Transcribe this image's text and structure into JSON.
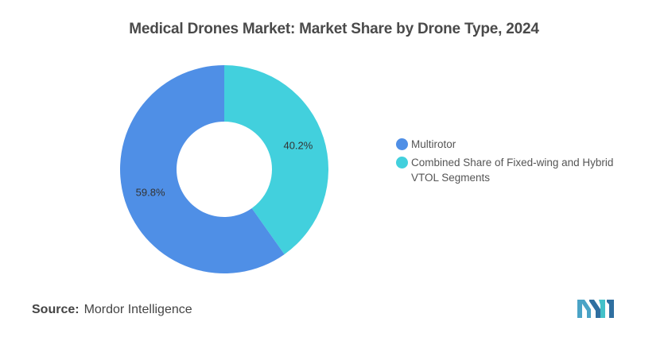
{
  "chart_data": {
    "type": "pie",
    "variant": "donut",
    "title": "Medical Drones Market: Market Share by Drone Type, 2024",
    "categories": [
      "Multirotor",
      "Combined Share of Fixed-wing and Hybrid VTOL Segments"
    ],
    "values": [
      59.8,
      40.2
    ],
    "labels": [
      "59.8%",
      "40.2%"
    ],
    "colors": [
      "#4f8fe6",
      "#42d0dd"
    ],
    "legend_position": "right"
  },
  "source": {
    "label": "Source:",
    "value": "Mordor Intelligence"
  },
  "logo_icon": "mordor-intelligence-logo-icon"
}
